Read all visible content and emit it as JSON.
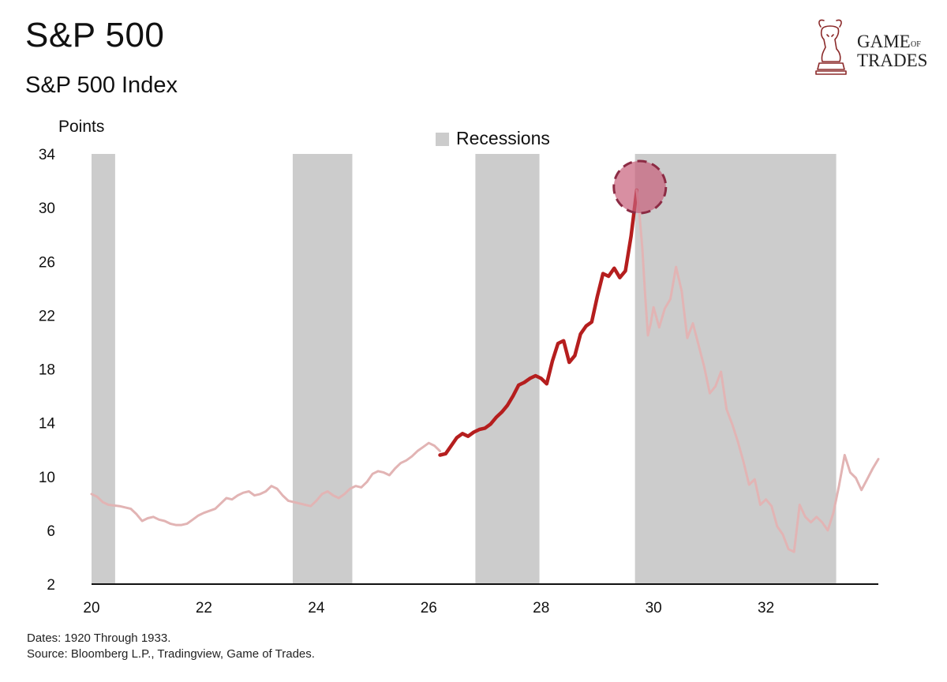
{
  "header": {
    "title": "S&P 500",
    "subtitle": "S&P 500 Index"
  },
  "logo": {
    "line1": "GAME",
    "line1_small": "OF",
    "line2": "TRADES",
    "icon": "bull-chess-knight-icon",
    "color": "#8b2a2a"
  },
  "footer": {
    "dates": "Dates: 1920 Through 1933.",
    "source": "Source: Bloomberg L.P., Tradingview, Game of Trades."
  },
  "colors": {
    "highlight_line": "#b51e1e",
    "faded_line": "#e2b4b4",
    "recession": "#cccccc",
    "peak_marker": "#c8607a"
  },
  "chart_data": {
    "type": "line",
    "ylabel": "Points",
    "xlim": [
      20,
      34.0
    ],
    "ylim": [
      2,
      34
    ],
    "x_ticks": [
      20,
      22,
      24,
      26,
      28,
      30,
      32
    ],
    "x_tick_labels": [
      "20",
      "22",
      "24",
      "26",
      "28",
      "30",
      "32"
    ],
    "y_ticks": [
      2,
      6,
      10,
      14,
      18,
      22,
      26,
      30,
      34
    ],
    "y_tick_labels": [
      "2",
      "6",
      "10",
      "14",
      "18",
      "22",
      "26",
      "30",
      "34"
    ],
    "legend": {
      "label": "Recessions",
      "position": "top-center"
    },
    "recessions": [
      {
        "start": 20.0,
        "end": 20.42
      },
      {
        "start": 23.58,
        "end": 24.64
      },
      {
        "start": 26.83,
        "end": 27.97
      },
      {
        "start": 29.67,
        "end": 33.25
      }
    ],
    "peak_marker": {
      "x": 29.7,
      "y": 31.3
    },
    "series": [
      {
        "role": "faded",
        "x": [
          20.0,
          20.1,
          20.2,
          20.3,
          20.5,
          20.7,
          20.8,
          20.9,
          21.0,
          21.1,
          21.2,
          21.3,
          21.4,
          21.5,
          21.6,
          21.7,
          21.8,
          21.9,
          22.0,
          22.2,
          22.3,
          22.4,
          22.5,
          22.6,
          22.7,
          22.8,
          22.9,
          23.0,
          23.1,
          23.2,
          23.3,
          23.4,
          23.5,
          23.6,
          23.8,
          23.9,
          24.0,
          24.1,
          24.2,
          24.3,
          24.4,
          24.5,
          24.6,
          24.7,
          24.8,
          24.9,
          25.0,
          25.1,
          25.2,
          25.3,
          25.4,
          25.5,
          25.6,
          25.7,
          25.8,
          25.9,
          26.0,
          26.1,
          26.2
        ],
        "y": [
          8.7,
          8.5,
          8.1,
          7.9,
          7.8,
          7.6,
          7.2,
          6.7,
          6.9,
          7.0,
          6.8,
          6.7,
          6.5,
          6.4,
          6.4,
          6.5,
          6.8,
          7.1,
          7.3,
          7.6,
          8.0,
          8.4,
          8.3,
          8.6,
          8.8,
          8.9,
          8.6,
          8.7,
          8.9,
          9.3,
          9.1,
          8.6,
          8.2,
          8.1,
          7.9,
          7.8,
          8.2,
          8.7,
          8.9,
          8.6,
          8.4,
          8.7,
          9.1,
          9.3,
          9.2,
          9.6,
          10.2,
          10.4,
          10.3,
          10.1,
          10.6,
          11.0,
          11.2,
          11.5,
          11.9,
          12.2,
          12.5,
          12.3,
          11.9
        ]
      },
      {
        "role": "highlight",
        "x": [
          26.2,
          26.3,
          26.4,
          26.5,
          26.6,
          26.7,
          26.8,
          26.9,
          27.0,
          27.1,
          27.2,
          27.3,
          27.4,
          27.5,
          27.6,
          27.7,
          27.8,
          27.9,
          28.0,
          28.1,
          28.2,
          28.3,
          28.4,
          28.5,
          28.6,
          28.7,
          28.8,
          28.9,
          29.0,
          29.1,
          29.2,
          29.3,
          29.4,
          29.5,
          29.6,
          29.7
        ],
        "y": [
          11.6,
          11.7,
          12.3,
          12.9,
          13.2,
          13.0,
          13.3,
          13.5,
          13.6,
          13.9,
          14.4,
          14.8,
          15.3,
          16.0,
          16.8,
          17.0,
          17.3,
          17.5,
          17.3,
          16.9,
          18.6,
          19.9,
          20.1,
          18.5,
          19.0,
          20.6,
          21.2,
          21.5,
          23.4,
          25.1,
          24.9,
          25.5,
          24.8,
          25.3,
          27.9,
          31.3
        ]
      },
      {
        "role": "faded",
        "x": [
          29.7,
          29.75,
          29.8,
          29.85,
          29.9,
          29.95,
          30.0,
          30.1,
          30.2,
          30.3,
          30.4,
          30.5,
          30.6,
          30.7,
          30.8,
          30.9,
          31.0,
          31.1,
          31.2,
          31.3,
          31.4,
          31.5,
          31.6,
          31.7,
          31.8,
          31.9,
          32.0,
          32.1,
          32.2,
          32.3,
          32.4,
          32.5,
          32.6,
          32.7,
          32.8,
          32.9,
          33.0,
          33.1,
          33.2,
          33.3,
          33.4,
          33.5,
          33.6,
          33.7,
          33.8,
          33.9,
          34.0
        ],
        "y": [
          31.3,
          29.5,
          27.0,
          23.5,
          20.5,
          21.4,
          22.6,
          21.1,
          22.5,
          23.2,
          25.6,
          23.8,
          20.3,
          21.4,
          19.8,
          18.2,
          16.2,
          16.7,
          17.8,
          15.0,
          13.9,
          12.6,
          11.1,
          9.4,
          9.8,
          7.9,
          8.3,
          7.8,
          6.3,
          5.7,
          4.6,
          4.4,
          7.9,
          7.0,
          6.6,
          7.0,
          6.6,
          6.0,
          7.3,
          9.3,
          11.6,
          10.3,
          9.9,
          9.0,
          9.8,
          10.6,
          11.3
        ]
      }
    ]
  }
}
